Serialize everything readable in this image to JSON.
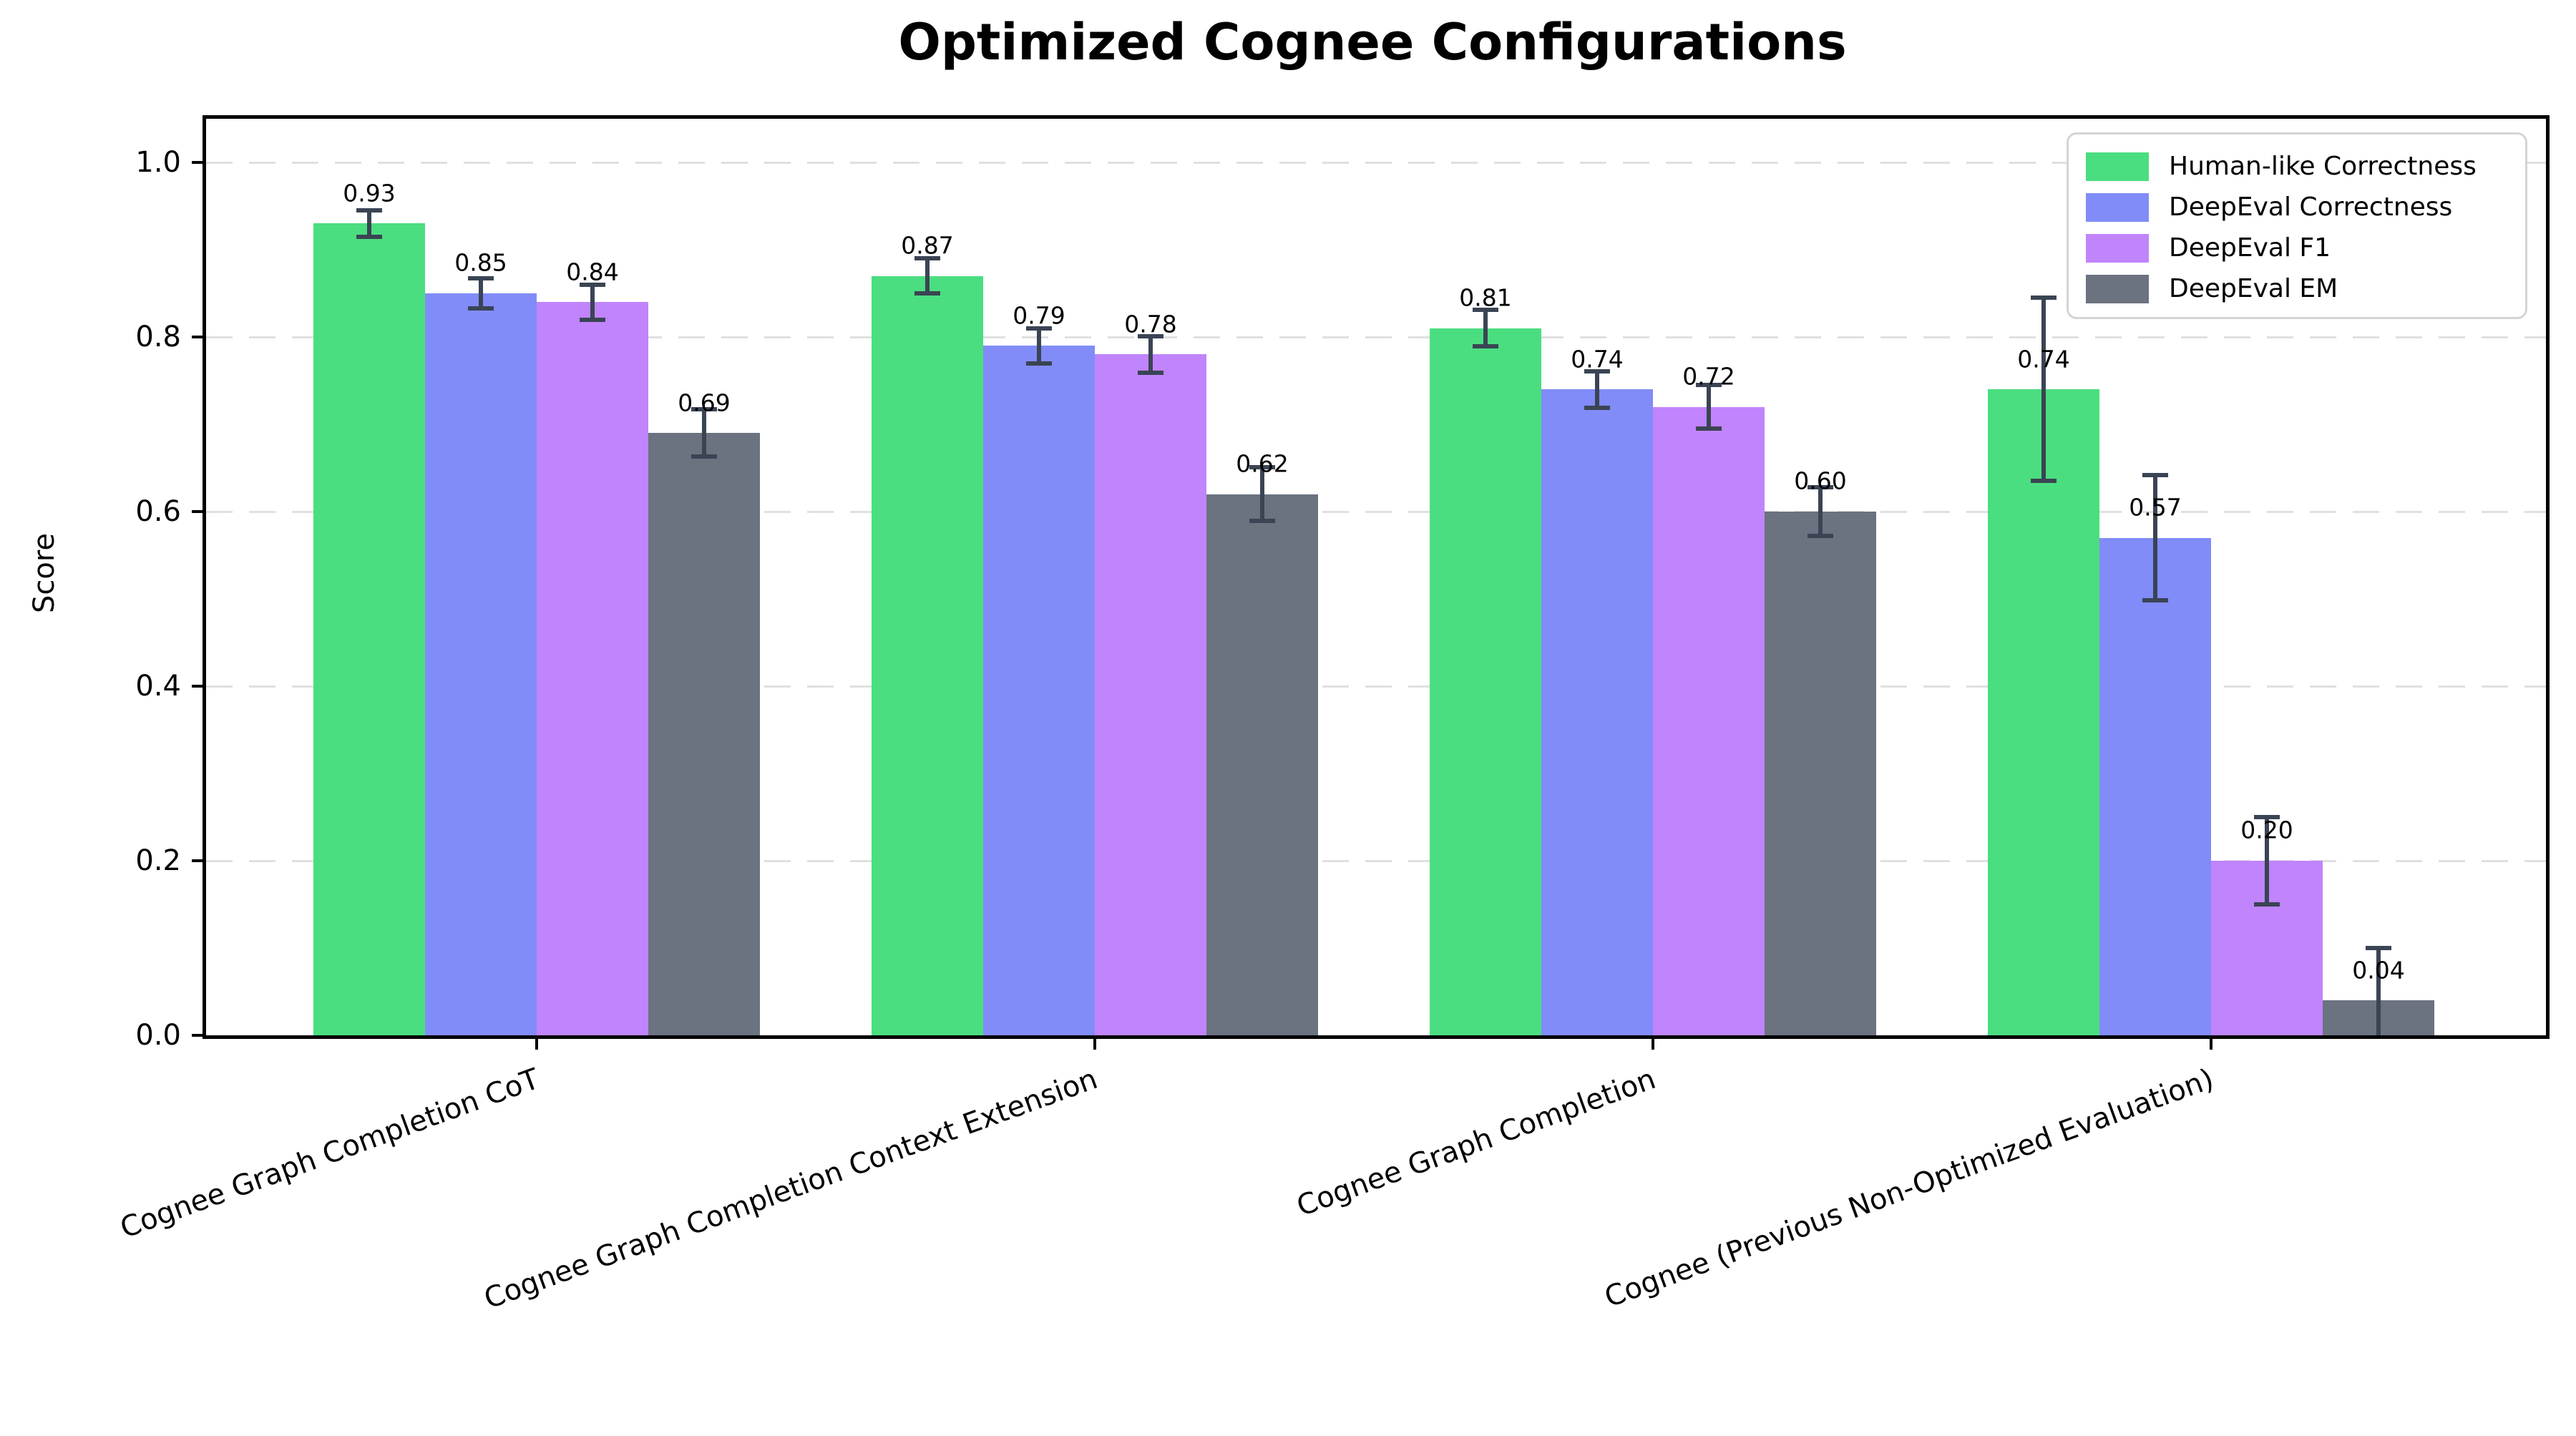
{
  "chart_data": {
    "type": "bar",
    "title": "Optimized Cognee Configurations",
    "xlabel": "",
    "ylabel": "Score",
    "ylim": [
      0,
      1.05
    ],
    "yticks": [
      {
        "value": 0.0,
        "label": "0.0"
      },
      {
        "value": 0.2,
        "label": "0.2"
      },
      {
        "value": 0.4,
        "label": "0.4"
      },
      {
        "value": 0.6,
        "label": "0.6"
      },
      {
        "value": 0.8,
        "label": "0.8"
      },
      {
        "value": 1.0,
        "label": "1.0"
      }
    ],
    "grid": "horizontal-dashed",
    "legend_position": "upper-right",
    "categories": [
      "Cognee Graph Completion CoT",
      "Cognee Graph Completion Context Extension",
      "Cognee Graph Completion",
      "Cognee (Previous Non-Optimized Evaluation)"
    ],
    "series": [
      {
        "name": "Human-like Correctness",
        "color": "#4ade80",
        "values": [
          0.93,
          0.87,
          0.81,
          0.74
        ],
        "errors": [
          0.015,
          0.02,
          0.021,
          0.105
        ],
        "value_labels": [
          "0.93",
          "0.87",
          "0.81",
          "0.74"
        ]
      },
      {
        "name": "DeepEval Correctness",
        "color": "#818cf8",
        "values": [
          0.85,
          0.79,
          0.74,
          0.57
        ],
        "errors": [
          0.017,
          0.02,
          0.021,
          0.072
        ],
        "value_labels": [
          "0.85",
          "0.79",
          "0.74",
          "0.57"
        ]
      },
      {
        "name": "DeepEval F1",
        "color": "#c084fc",
        "values": [
          0.84,
          0.78,
          0.72,
          0.2
        ],
        "errors": [
          0.02,
          0.021,
          0.025,
          0.05
        ],
        "value_labels": [
          "0.84",
          "0.78",
          "0.72",
          "0.20"
        ]
      },
      {
        "name": "DeepEval EM",
        "color": "#6b7280",
        "values": [
          0.69,
          0.62,
          0.6,
          0.04
        ],
        "errors": [
          0.027,
          0.031,
          0.028,
          0.06
        ],
        "value_labels": [
          "0.69",
          "0.62",
          "0.60",
          "0.04"
        ]
      }
    ],
    "style_colors": {
      "error_bar": "#3a4454",
      "grid": "#e0e0e0",
      "spine": "#000000",
      "legend_border": "#d4d4d4",
      "text": "#000000",
      "background": "#ffffff"
    }
  }
}
